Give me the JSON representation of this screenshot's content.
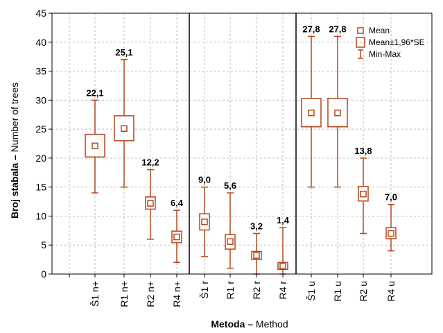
{
  "chart_data": {
    "type": "boxplot",
    "xlabel_bold": "Metoda –",
    "xlabel_rest": " Method",
    "ylabel_bold": "Broj stabala –",
    "ylabel_rest": " Number of trees",
    "ylim": [
      0,
      45
    ],
    "yticks": [
      0,
      5,
      10,
      15,
      20,
      25,
      30,
      35,
      40,
      45
    ],
    "grid": true,
    "legend_position": "top-right",
    "legend": [
      "Mean",
      "Mean±1,96*SE",
      "Min-Max"
    ],
    "colors": {
      "series": "#b5451b",
      "axis": "#000000",
      "grid": "#bbbbbb"
    },
    "groups": [
      [
        "Š1 n+",
        "R1 n+",
        "R2 n+",
        "R4 n+"
      ],
      [
        "Š1 r",
        "R1 r",
        "R2 r",
        "R4 r"
      ],
      [
        "Š1 u",
        "R1 u",
        "R2 u",
        "R4 u"
      ]
    ],
    "categories": [
      "Š1 n+",
      "R1 n+",
      "R2 n+",
      "R4 n+",
      "Š1 r",
      "R1 r",
      "R2 r",
      "R4 r",
      "Š1 u",
      "R1 u",
      "R2 u",
      "R4 u"
    ],
    "mean": [
      22.1,
      25.1,
      12.2,
      6.4,
      9.0,
      5.6,
      3.2,
      1.4,
      27.8,
      27.8,
      13.8,
      7.0
    ],
    "mean_labels": [
      "22,1",
      "25,1",
      "12,2",
      "6,4",
      "9,0",
      "5,6",
      "3,2",
      "1,4",
      "27,8",
      "27,8",
      "13,8",
      "7,0"
    ],
    "se_low": [
      20.2,
      23.0,
      11.2,
      5.4,
      7.6,
      4.3,
      2.5,
      0.8,
      25.4,
      25.4,
      12.6,
      6.1
    ],
    "se_high": [
      24.1,
      27.3,
      13.3,
      7.4,
      10.4,
      6.8,
      3.9,
      2.0,
      30.3,
      30.3,
      15.1,
      8.0
    ],
    "min": [
      14,
      15,
      6,
      2,
      3,
      1,
      0,
      0,
      15,
      15,
      7,
      4
    ],
    "max": [
      30,
      37,
      18,
      11,
      15,
      14,
      7,
      8,
      41,
      41,
      20,
      12
    ]
  }
}
